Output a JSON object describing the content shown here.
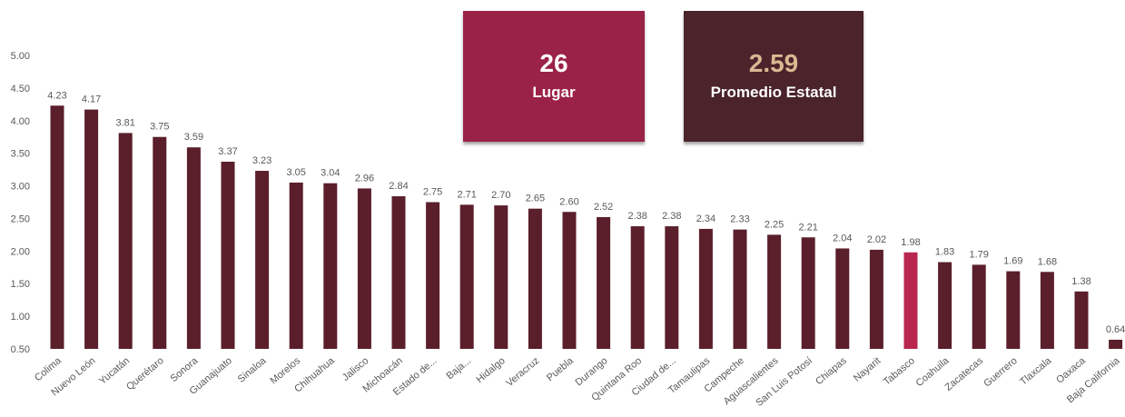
{
  "colors": {
    "bar": "#5a1f2b",
    "highlight": "#b8264f",
    "rank_card": "#9b2247",
    "avg_card": "#4a232b",
    "avg_value": "#d9b892",
    "text": "#595959"
  },
  "cards": {
    "rank": {
      "value": "26",
      "label": "Lugar"
    },
    "average": {
      "value": "2.59",
      "label": "Promedio Estatal"
    }
  },
  "chart_data": {
    "type": "bar",
    "title": "",
    "xlabel": "",
    "ylabel": "",
    "ylim": [
      0.5,
      5.0
    ],
    "yticks": [
      "0.50",
      "1.00",
      "1.50",
      "2.00",
      "2.50",
      "3.00",
      "3.50",
      "4.00",
      "4.50",
      "5.00"
    ],
    "grid": false,
    "highlight_category": "Tabasco",
    "categories": [
      "Colima",
      "Nuevo León",
      "Yucatán",
      "Querétaro",
      "Sonora",
      "Guanajuato",
      "Sinaloa",
      "Morelos",
      "Chihuahua",
      "Jalisco",
      "Michoacán",
      "Estado de...",
      "Baja...",
      "Hidalgo",
      "Veracruz",
      "Puebla",
      "Durango",
      "Quintana Roo",
      "Ciudad de...",
      "Tamaulipas",
      "Campeche",
      "Aguascalientes",
      "San Luis Potosí",
      "Chiapas",
      "Nayarit",
      "Tabasco",
      "Coahuila",
      "Zacatecas",
      "Guerrero",
      "Tlaxcala",
      "Oaxaca",
      "Baja California"
    ],
    "values": [
      4.23,
      4.17,
      3.81,
      3.75,
      3.59,
      3.37,
      3.23,
      3.05,
      3.04,
      2.96,
      2.84,
      2.75,
      2.71,
      2.7,
      2.65,
      2.6,
      2.52,
      2.38,
      2.38,
      2.34,
      2.33,
      2.25,
      2.21,
      2.04,
      2.02,
      1.98,
      1.83,
      1.79,
      1.69,
      1.68,
      1.38,
      0.64
    ],
    "value_labels": [
      "4.23",
      "4.17",
      "3.81",
      "3.75",
      "3.59",
      "3.37",
      "3.23",
      "3.05",
      "3.04",
      "2.96",
      "2.84",
      "2.75",
      "2.71",
      "2.70",
      "2.65",
      "2.60",
      "2.52",
      "2.38",
      "2.38",
      "2.34",
      "2.33",
      "2.25",
      "2.21",
      "2.04",
      "2.02",
      "1.98",
      "1.83",
      "1.79",
      "1.69",
      "1.68",
      "1.38",
      "0.64"
    ]
  }
}
